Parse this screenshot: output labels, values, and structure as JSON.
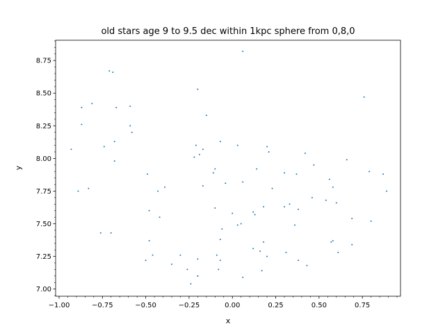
{
  "chart_data": {
    "type": "scatter",
    "title": "old stars age 9 to 9.5 dec within 1kpc sphere from 0,8,0",
    "xlabel": "x",
    "ylabel": "y",
    "xlim": [
      -1.02,
      0.97
    ],
    "ylim": [
      6.945,
      8.905
    ],
    "xticks": [
      -1.0,
      -0.75,
      -0.5,
      -0.25,
      0.0,
      0.25,
      0.5,
      0.75
    ],
    "xtick_labels": [
      "−1.00",
      "−0.75",
      "−0.50",
      "−0.25",
      "0.00",
      "0.25",
      "0.50",
      "0.75"
    ],
    "yticks": [
      7.0,
      7.25,
      7.5,
      7.75,
      8.0,
      8.25,
      8.5,
      8.75
    ],
    "ytick_labels": [
      "7.00",
      "7.25",
      "7.50",
      "7.75",
      "8.00",
      "8.25",
      "8.50",
      "8.75"
    ],
    "grid": false,
    "marker_color": "#1f77b4",
    "series": [
      {
        "x": [
          0.06,
          -0.71,
          -0.69,
          0.76,
          -0.2,
          -0.87,
          -0.81,
          -0.67,
          -0.59,
          -0.15,
          -0.87,
          -0.59,
          -0.58,
          -0.68,
          -0.74,
          -0.07,
          0.03,
          0.2,
          -0.21,
          -0.17,
          -0.93,
          0.21,
          -0.19,
          -0.22,
          0.66,
          0.42,
          -0.68,
          0.47,
          0.14,
          -0.1,
          0.3,
          0.79,
          0.87,
          -0.49,
          -0.11,
          0.37,
          0.06,
          -0.04,
          0.56,
          0.58,
          0.23,
          -0.17,
          -0.39,
          -0.83,
          0.89,
          -0.89,
          -0.43,
          0.46,
          0.54,
          0.6,
          0.33,
          0.3,
          0.18,
          0.38,
          -0.48,
          0.13,
          -0.42,
          0.69,
          0.8,
          -0.1,
          0.0,
          0.03,
          0.05,
          0.12,
          0.36,
          -0.06,
          -0.76,
          -0.7,
          -0.07,
          -0.48,
          0.58,
          0.57,
          0.69,
          0.18,
          -0.09,
          0.12,
          0.16,
          0.61,
          0.31,
          -0.46,
          -0.3,
          0.2,
          -0.2,
          -0.07,
          0.38,
          -0.5,
          -0.35,
          -0.2,
          0.43,
          -0.26,
          0.17,
          -0.08,
          0.06,
          -0.2,
          -0.24
        ],
        "y": [
          8.82,
          8.67,
          8.66,
          8.47,
          8.53,
          8.39,
          8.42,
          8.39,
          8.4,
          8.33,
          8.26,
          8.25,
          8.2,
          8.13,
          8.09,
          8.13,
          8.1,
          8.09,
          8.1,
          8.07,
          8.07,
          8.05,
          8.03,
          8.01,
          7.99,
          8.04,
          7.98,
          7.95,
          7.92,
          7.92,
          7.89,
          7.9,
          7.88,
          7.88,
          7.89,
          7.88,
          7.82,
          7.81,
          7.84,
          7.78,
          7.77,
          7.79,
          7.78,
          7.77,
          7.75,
          7.75,
          7.75,
          7.7,
          7.68,
          7.66,
          7.65,
          7.63,
          7.63,
          7.61,
          7.6,
          7.57,
          7.55,
          7.54,
          7.52,
          7.62,
          7.58,
          7.49,
          7.5,
          7.59,
          7.49,
          7.46,
          7.43,
          7.43,
          7.38,
          7.37,
          7.37,
          7.36,
          7.34,
          7.36,
          7.26,
          7.31,
          7.29,
          7.28,
          7.28,
          7.26,
          7.26,
          7.25,
          7.23,
          7.22,
          7.22,
          7.22,
          7.19,
          7.1,
          7.18,
          7.15,
          7.14,
          7.15,
          7.09,
          7.1,
          7.04
        ]
      }
    ]
  }
}
